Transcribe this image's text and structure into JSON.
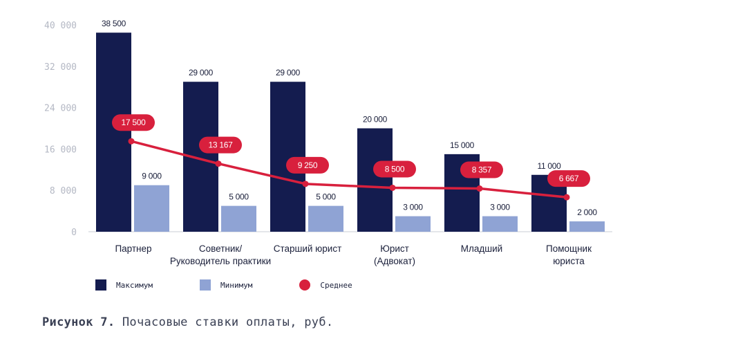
{
  "chart_data": {
    "type": "bar",
    "categories": [
      "Партнер",
      "Советник/\nРуководитель практики",
      "Старший юрист",
      "Юрист\n(Адвокат)",
      "Младший",
      "Помощник\nюриста"
    ],
    "series": [
      {
        "name": "Максимум",
        "color": "#141c4f",
        "values": [
          38500,
          29000,
          29000,
          20000,
          15000,
          11000
        ],
        "labels": [
          "38 500",
          "29 000",
          "29 000",
          "20 000",
          "15 000",
          "11 000"
        ]
      },
      {
        "name": "Минимум",
        "color": "#8fa3d4",
        "values": [
          9000,
          5000,
          5000,
          3000,
          3000,
          2000
        ],
        "labels": [
          "9 000",
          "5 000",
          "5 000",
          "3 000",
          "3 000",
          "2 000"
        ]
      },
      {
        "name": "Среднее",
        "type": "line",
        "color": "#d8203d",
        "values": [
          17500,
          13167,
          9250,
          8500,
          8357,
          6667
        ],
        "labels": [
          "17 500",
          "13 167",
          "9 250",
          "8 500",
          "8 357",
          "6 667"
        ]
      }
    ],
    "ylim": [
      0,
      40000
    ],
    "yticks": [
      0,
      8000,
      16000,
      24000,
      32000,
      40000
    ],
    "ytick_labels": [
      "0",
      "8 000",
      "16 000",
      "24 000",
      "32 000",
      "40 000"
    ],
    "legend_position": "bottom-left"
  },
  "legend": {
    "max_label": "Максимум",
    "min_label": "Минимум",
    "avg_label": "Среднее"
  },
  "caption": {
    "bold": "Рисунок 7.",
    "text": " Почасовые ставки оплаты, руб."
  }
}
